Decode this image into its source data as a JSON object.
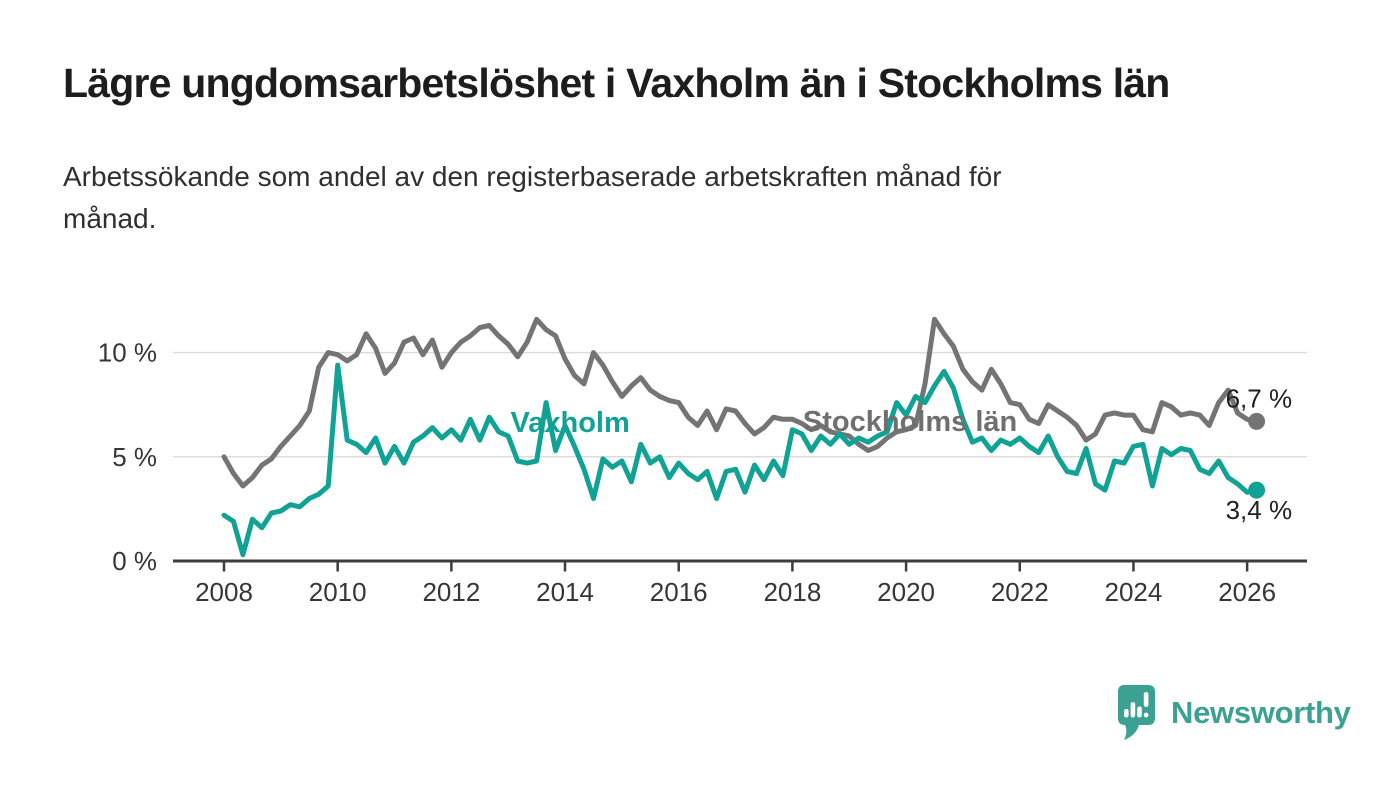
{
  "header": {
    "title": "Lägre ungdomsarbetslöshet i Vaxholm än i Stockholms län",
    "subtitle": "Arbetssökande som andel av den registerbaserade arbetskraften månad för månad.",
    "subtitle_lines": [
      "Arbetssökande som andel av den registerbaserade arbetskraften månad för",
      "månad."
    ]
  },
  "chart_data": {
    "type": "line",
    "title": "Lägre ungdomsarbetslöshet i Vaxholm än i Stockholms län",
    "subtitle": "Arbetssökande som andel av den registerbaserade arbetskraften månad för månad.",
    "x_unit": "year (monthly data)",
    "x_start": 2008,
    "points_per_year": 6,
    "xlim": [
      2007.1,
      2027.05
    ],
    "ylim": [
      0,
      12.3
    ],
    "grid": "horizontal",
    "legend_position": "inline-labels",
    "x_tick_years": [
      2008,
      2010,
      2012,
      2014,
      2016,
      2018,
      2020,
      2022,
      2024,
      2026
    ],
    "x_tick_labels": [
      "2008",
      "2010",
      "2012",
      "2014",
      "2016",
      "2018",
      "2020",
      "2022",
      "2024",
      "2026"
    ],
    "y_ticks": [
      {
        "value": 0,
        "label": "0 %"
      },
      {
        "value": 5,
        "label": "5 %"
      },
      {
        "value": 10,
        "label": "10 %"
      }
    ],
    "series": [
      {
        "name": "Stockholms län",
        "color": "#747474",
        "end_label": "6,7 %",
        "end_label_position": "above",
        "last_value": 6.7,
        "values": [
          5.0,
          4.2,
          3.6,
          4.0,
          4.6,
          4.9,
          5.5,
          6.0,
          6.5,
          7.2,
          9.3,
          10.0,
          9.9,
          9.6,
          9.9,
          10.9,
          10.2,
          9.0,
          9.5,
          10.5,
          10.7,
          9.9,
          10.6,
          9.3,
          10.0,
          10.5,
          10.8,
          11.2,
          11.3,
          10.8,
          10.4,
          9.8,
          10.5,
          11.6,
          11.1,
          10.8,
          9.7,
          8.9,
          8.5,
          10.0,
          9.4,
          8.6,
          7.9,
          8.4,
          8.8,
          8.2,
          7.9,
          7.7,
          7.6,
          6.9,
          6.5,
          7.2,
          6.3,
          7.3,
          7.2,
          6.6,
          6.1,
          6.4,
          6.9,
          6.8,
          6.8,
          6.6,
          6.3,
          6.5,
          6.2,
          6.1,
          6.0,
          5.6,
          5.3,
          5.5,
          5.9,
          6.2,
          6.3,
          6.5,
          8.5,
          11.6,
          10.9,
          10.3,
          9.2,
          8.6,
          8.2,
          9.2,
          8.5,
          7.6,
          7.5,
          6.8,
          6.6,
          7.5,
          7.2,
          6.9,
          6.5,
          5.8,
          6.1,
          7.0,
          7.1,
          7.0,
          7.0,
          6.3,
          6.2,
          7.6,
          7.4,
          7.0,
          7.1,
          7.0,
          6.5,
          7.6,
          8.2,
          7.1,
          6.8,
          6.7
        ]
      },
      {
        "name": "Vaxholm",
        "color": "#11a296",
        "end_label": "3,4 %",
        "end_label_position": "below",
        "last_value": 3.4,
        "values": [
          2.2,
          1.9,
          0.3,
          2.0,
          1.6,
          2.3,
          2.4,
          2.7,
          2.6,
          3.0,
          3.2,
          3.6,
          9.4,
          5.8,
          5.6,
          5.2,
          5.9,
          4.7,
          5.5,
          4.7,
          5.7,
          6.0,
          6.4,
          5.9,
          6.3,
          5.8,
          6.8,
          5.8,
          6.9,
          6.2,
          6.0,
          4.8,
          4.7,
          4.8,
          7.6,
          5.3,
          6.5,
          5.5,
          4.4,
          3.0,
          4.9,
          4.5,
          4.8,
          3.8,
          5.6,
          4.7,
          5.0,
          4.0,
          4.7,
          4.2,
          3.9,
          4.3,
          3.0,
          4.3,
          4.4,
          3.3,
          4.6,
          3.9,
          4.8,
          4.1,
          6.3,
          6.1,
          5.3,
          6.0,
          5.6,
          6.1,
          5.6,
          5.9,
          5.7,
          6.0,
          6.2,
          7.6,
          7.0,
          7.9,
          7.6,
          8.4,
          9.1,
          8.3,
          6.8,
          5.7,
          5.9,
          5.3,
          5.8,
          5.6,
          5.9,
          5.5,
          5.2,
          6.0,
          5.0,
          4.3,
          4.2,
          5.4,
          3.7,
          3.4,
          4.8,
          4.7,
          5.5,
          5.6,
          3.6,
          5.4,
          5.1,
          5.4,
          5.3,
          4.4,
          4.2,
          4.8,
          4.0,
          3.7,
          3.3,
          3.4
        ]
      }
    ],
    "series_annotations": [
      {
        "text": "Vaxholm",
        "x": 2014.09,
        "y": 6.67,
        "color": "#11a296"
      },
      {
        "text": "Stockholms län",
        "x": 2020.07,
        "y": 6.72,
        "color": "#6f6f6f"
      }
    ]
  },
  "colors": {
    "grid": "#dcdcdc",
    "axis": "#3d3d3d",
    "tick_text": "#363636",
    "end_label_text": "#1f1f1f",
    "background": "#ffffff"
  },
  "footer": {
    "brand": "Newsworthy"
  }
}
